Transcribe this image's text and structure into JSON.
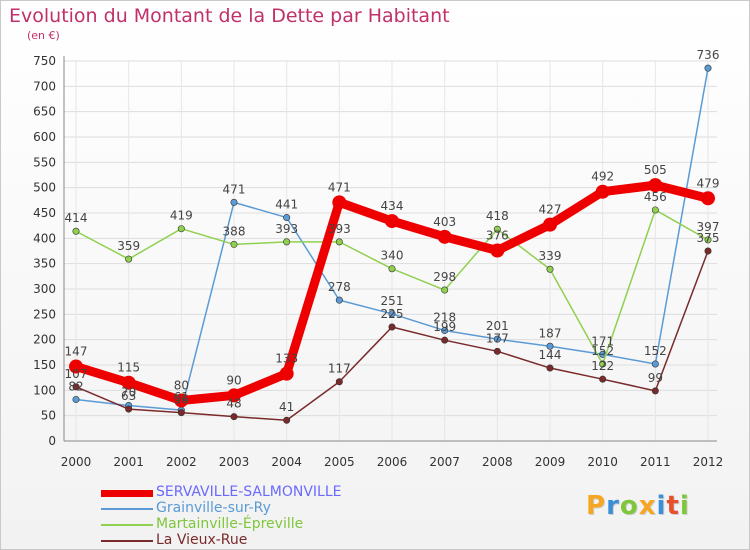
{
  "title": "Evolution du Montant de la Dette par Habitant",
  "unit_label": "(en €)",
  "logo": {
    "letters": [
      "P",
      "r",
      "o",
      "x",
      "i",
      "t",
      "i"
    ],
    "colors": [
      "#f5a623",
      "#3a8fd6",
      "#7ec63a",
      "#f5a623",
      "#3a8fd6",
      "#e8502b",
      "#7ec63a"
    ]
  },
  "chart_data": {
    "type": "line",
    "categories": [
      "2000",
      "2001",
      "2002",
      "2003",
      "2004",
      "2005",
      "2006",
      "2007",
      "2008",
      "2009",
      "2010",
      "2011",
      "2012"
    ],
    "ylim": [
      0,
      750
    ],
    "yticks": [
      "0",
      "50",
      "100",
      "150",
      "200",
      "250",
      "300",
      "350",
      "400",
      "450",
      "500",
      "550",
      "600",
      "650",
      "700",
      "750"
    ],
    "grid": true,
    "legend_position": "bottom-left",
    "series": [
      {
        "name": "SERVAVILLE-SALMONVILLE",
        "values": [
          147,
          115,
          80,
          90,
          133,
          471,
          434,
          403,
          376,
          427,
          492,
          505,
          479
        ],
        "labels": [
          "147",
          "115",
          "80",
          "90",
          "133",
          "471",
          "434",
          "403",
          "376",
          "427",
          "492",
          "505",
          "479"
        ],
        "color": "#ee0000",
        "legend_color": "#6a6aff",
        "emphasis": true
      },
      {
        "name": "Grainville-sur-Ry",
        "values": [
          82,
          70,
          61,
          471,
          441,
          278,
          251,
          218,
          201,
          187,
          171,
          152,
          736
        ],
        "labels": [
          "82",
          "70",
          "61",
          "471",
          "441",
          "278",
          "251",
          "218",
          "201",
          "187",
          "171",
          "152",
          "736"
        ],
        "color": "#5b9bd5",
        "legend_color": "#5b9bd5"
      },
      {
        "name": "Martainville-Épreville",
        "values": [
          414,
          359,
          419,
          388,
          393,
          393,
          340,
          298,
          418,
          339,
          152,
          456,
          397
        ],
        "labels": [
          "414",
          "359",
          "419",
          "388",
          "393",
          "393",
          "340",
          "298",
          "418",
          "339",
          "152",
          "456",
          "397"
        ],
        "color": "#8fd14f",
        "legend_color": "#7ec63a"
      },
      {
        "name": "La Vieux-Rue",
        "values": [
          107,
          63,
          56,
          48,
          41,
          117,
          225,
          199,
          177,
          144,
          122,
          99,
          375
        ],
        "labels": [
          "107",
          "63",
          "56",
          "48",
          "41",
          "117",
          "225",
          "199",
          "177",
          "144",
          "122",
          "99",
          "375"
        ],
        "color": "#7a2a2a",
        "legend_color": "#7a2a2a"
      }
    ]
  }
}
